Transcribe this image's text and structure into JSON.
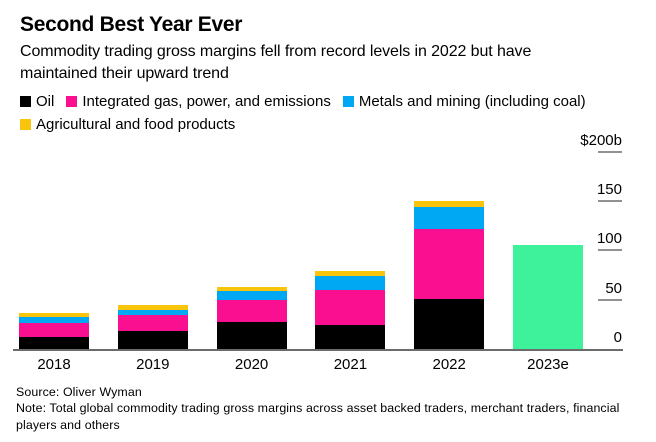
{
  "header": {
    "title": "Second Best Year Ever",
    "subtitle": "Commodity trading gross margins fell from record levels in 2022 but have maintained their upward trend"
  },
  "footer": {
    "source": "Source: Oliver Wyman",
    "note": "Note: Total global commodity trading gross margins across asset backed traders, merchant traders, financial players and others"
  },
  "chart_data": {
    "type": "bar",
    "subtype": "stacked-vertical",
    "title": "Second Best Year Ever",
    "unit": "$b",
    "ylim": [
      0,
      200
    ],
    "grid": false,
    "legend_position": "top",
    "axis_side": "right",
    "categories": [
      "2018",
      "2019",
      "2020",
      "2021",
      "2022",
      "2023e"
    ],
    "series": [
      {
        "key": "oil",
        "name": "Oil",
        "color": "#000000",
        "values": [
          12.5,
          18.5,
          27.5,
          24,
          50.5,
          null
        ]
      },
      {
        "key": "integrated-gas-power-emissions",
        "name": "Integrated gas, power, and emissions",
        "color": "#fa0f90",
        "values": [
          13.5,
          16,
          22.5,
          36,
          71,
          null
        ]
      },
      {
        "key": "metals-and-mining",
        "name": "Metals and mining (including coal)",
        "color": "#00a7f2",
        "values": [
          6.5,
          5.5,
          8.5,
          14.5,
          22,
          null
        ]
      },
      {
        "key": "agricultural-and-food",
        "name": "Agricultural and food products",
        "color": "#f9c40c",
        "values": [
          4.5,
          4.5,
          4,
          4.5,
          7,
          null
        ]
      }
    ],
    "estimate_bar": {
      "category": "2023e",
      "total": 105,
      "color": "#3ef29c"
    },
    "totals": [
      37,
      44.5,
      62.5,
      79,
      150.5,
      105
    ],
    "yticks": [
      {
        "label": "$200b",
        "value": 200
      },
      {
        "label": "150",
        "value": 150
      },
      {
        "label": "100",
        "value": 100
      },
      {
        "label": "50",
        "value": 50
      },
      {
        "label": "0",
        "value": 0
      }
    ]
  },
  "colors": {
    "background": "#ffffff",
    "text": "#000000",
    "axis_line": "#6b6b6b",
    "tick_dash": "#919191"
  }
}
